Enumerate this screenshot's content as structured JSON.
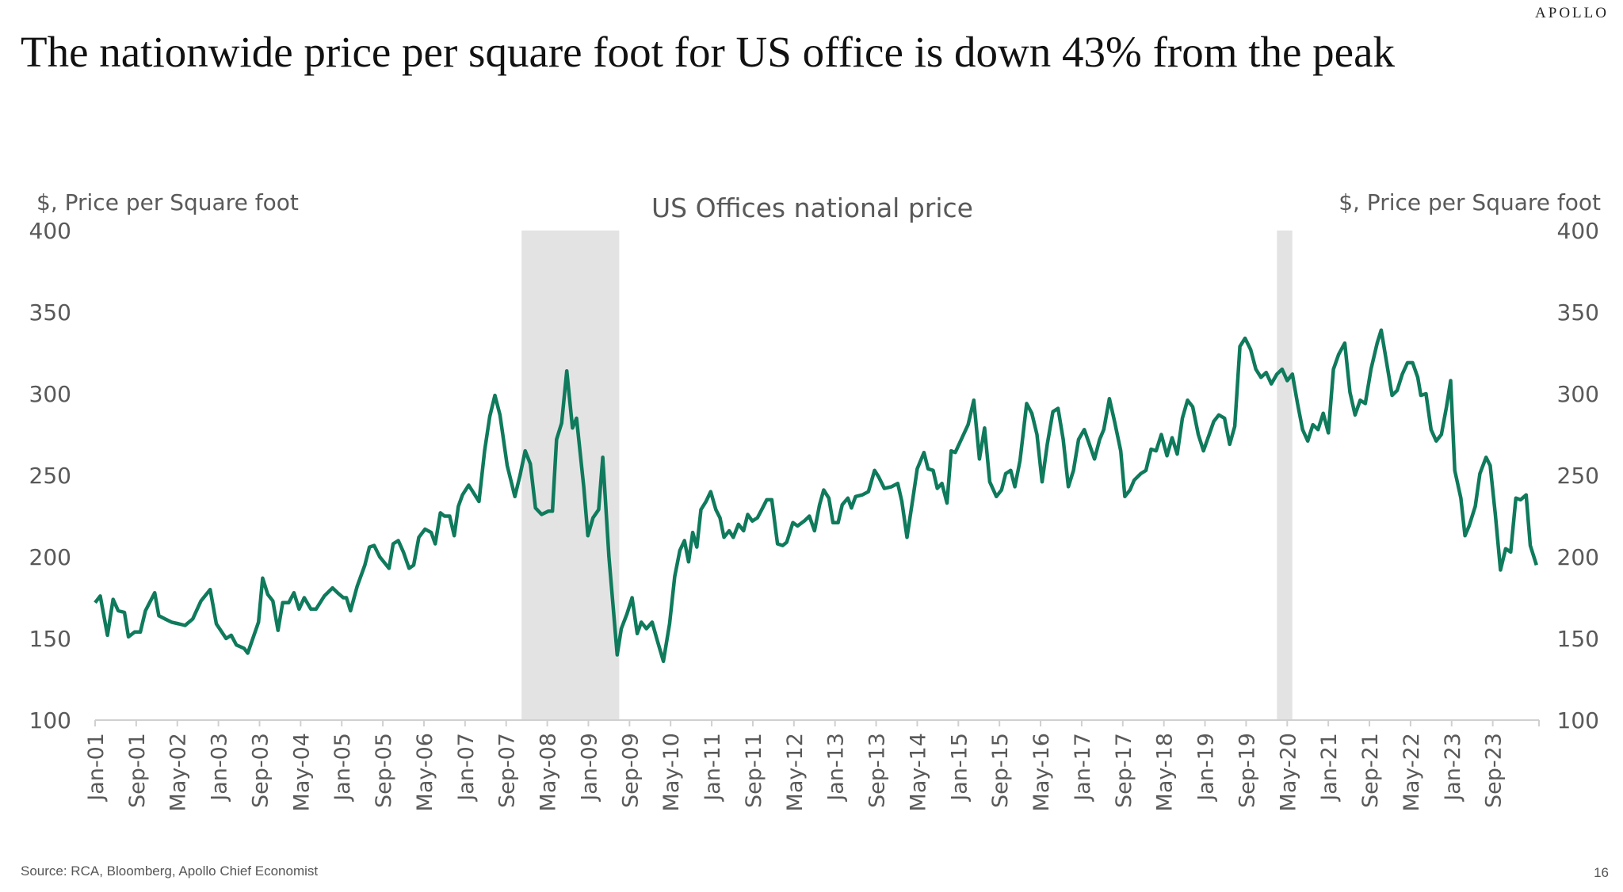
{
  "brand": "APOLLO",
  "title": "The nationwide price per square foot for US office is down 43% from the peak",
  "source": "Source: RCA, Bloomberg, Apollo Chief Economist",
  "page_number": "16",
  "colors": {
    "line": "#0f7a5c",
    "recession": "#e3e3e3",
    "text": "#595959"
  },
  "chart_data": {
    "type": "line",
    "title": "US Offices national price",
    "ylabel_left": "$, Price per Square foot",
    "ylabel_right": "$, Price per Square foot",
    "ylim": [
      100,
      400
    ],
    "yticks": [
      "100",
      "150",
      "200",
      "250",
      "300",
      "350",
      "400"
    ],
    "x_unit": "months since Jan-01",
    "xlim": [
      0,
      281
    ],
    "xtick_labels": [
      "Jan-01",
      "Sep-01",
      "May-02",
      "Jan-03",
      "Sep-03",
      "May-04",
      "Jan-05",
      "Sep-05",
      "May-06",
      "Jan-07",
      "Sep-07",
      "May-08",
      "Jan-09",
      "Sep-09",
      "May-10",
      "Jan-11",
      "Sep-11",
      "May-12",
      "Jan-13",
      "Sep-13",
      "May-14",
      "Jan-15",
      "Sep-15",
      "May-16",
      "Jan-17",
      "Sep-17",
      "May-18",
      "Jan-19",
      "Sep-19",
      "May-20",
      "Jan-21",
      "Sep-21",
      "May-22",
      "Jan-23",
      "Sep-23"
    ],
    "xtick_step_months": 8,
    "recession_shading": [
      [
        83,
        102
      ],
      [
        230,
        233
      ]
    ],
    "grid": false,
    "series": [
      {
        "name": "US Offices national price",
        "points": [
          [
            0,
            172
          ],
          [
            1,
            176
          ],
          [
            2.4,
            152
          ],
          [
            3.5,
            174
          ],
          [
            4.5,
            167
          ],
          [
            5.7,
            166
          ],
          [
            6.5,
            151
          ],
          [
            7.7,
            154
          ],
          [
            8.8,
            154
          ],
          [
            9.8,
            167
          ],
          [
            11.6,
            178
          ],
          [
            12.4,
            164
          ],
          [
            13.6,
            162
          ],
          [
            14.9,
            160
          ],
          [
            16.3,
            159
          ],
          [
            17.5,
            158
          ],
          [
            19,
            162
          ],
          [
            20.6,
            173
          ],
          [
            22.4,
            180
          ],
          [
            23.6,
            159
          ],
          [
            25.5,
            150
          ],
          [
            26.5,
            152
          ],
          [
            27.5,
            146
          ],
          [
            29,
            144
          ],
          [
            29.7,
            141
          ],
          [
            31.8,
            160
          ],
          [
            32.6,
            187
          ],
          [
            33.6,
            177
          ],
          [
            34.6,
            173
          ],
          [
            35.6,
            155
          ],
          [
            36.5,
            172
          ],
          [
            37.7,
            172
          ],
          [
            38.7,
            178
          ],
          [
            39.7,
            168
          ],
          [
            40.7,
            175
          ],
          [
            42,
            168
          ],
          [
            43,
            168
          ],
          [
            44.6,
            176
          ],
          [
            46.2,
            181
          ],
          [
            47.2,
            178
          ],
          [
            48.3,
            175
          ],
          [
            48.9,
            175
          ],
          [
            49.7,
            167
          ],
          [
            51,
            182
          ],
          [
            52.5,
            195
          ],
          [
            53.4,
            206
          ],
          [
            54.3,
            207
          ],
          [
            55.4,
            200
          ],
          [
            57.2,
            193
          ],
          [
            58,
            208
          ],
          [
            59,
            210
          ],
          [
            60,
            203
          ],
          [
            61.1,
            193
          ],
          [
            62,
            195
          ],
          [
            63,
            212
          ],
          [
            64.2,
            217
          ],
          [
            65.4,
            215
          ],
          [
            66.2,
            208
          ],
          [
            67.2,
            227
          ],
          [
            68,
            225
          ],
          [
            69,
            225
          ],
          [
            69.9,
            213
          ],
          [
            70.7,
            231
          ],
          [
            71.5,
            238
          ],
          [
            72.7,
            244
          ],
          [
            73.5,
            240
          ],
          [
            74.7,
            234
          ],
          [
            75.8,
            265
          ],
          [
            76.8,
            286
          ],
          [
            77.8,
            299
          ],
          [
            78.8,
            287
          ],
          [
            80.2,
            256
          ],
          [
            81.7,
            237
          ],
          [
            82.7,
            250
          ],
          [
            83.7,
            265
          ],
          [
            84.7,
            257
          ],
          [
            85.7,
            230
          ],
          [
            86.9,
            226
          ],
          [
            88.2,
            228
          ],
          [
            89,
            228
          ],
          [
            89.8,
            272
          ],
          [
            90.8,
            282
          ],
          [
            91.8,
            314
          ],
          [
            92.9,
            279
          ],
          [
            93.7,
            285
          ],
          [
            95.1,
            243
          ],
          [
            95.9,
            213
          ],
          [
            96.9,
            224
          ],
          [
            98,
            229
          ],
          [
            98.8,
            261
          ],
          [
            100,
            200
          ],
          [
            101.6,
            140
          ],
          [
            102.4,
            156
          ],
          [
            103.5,
            165
          ],
          [
            104.5,
            175
          ],
          [
            105.5,
            153
          ],
          [
            106.3,
            160
          ],
          [
            107.3,
            156
          ],
          [
            108.4,
            160
          ],
          [
            109.4,
            149
          ],
          [
            110.6,
            136
          ],
          [
            111.8,
            159
          ],
          [
            112.8,
            188
          ],
          [
            113.8,
            204
          ],
          [
            114.7,
            210
          ],
          [
            115.5,
            197
          ],
          [
            116.3,
            215
          ],
          [
            117.1,
            206
          ],
          [
            117.9,
            229
          ],
          [
            118.9,
            234
          ],
          [
            119.8,
            240
          ],
          [
            120.8,
            229
          ],
          [
            121.6,
            224
          ],
          [
            122.4,
            212
          ],
          [
            123.4,
            216
          ],
          [
            124.2,
            212
          ],
          [
            125.2,
            220
          ],
          [
            126.2,
            216
          ],
          [
            127,
            226
          ],
          [
            127.9,
            222
          ],
          [
            128.9,
            224
          ],
          [
            129.9,
            230
          ],
          [
            130.7,
            235
          ],
          [
            131.7,
            235
          ],
          [
            132.8,
            208
          ],
          [
            133.8,
            207
          ],
          [
            134.6,
            209
          ],
          [
            135.8,
            221
          ],
          [
            136.7,
            219
          ],
          [
            138,
            222
          ],
          [
            139,
            225
          ],
          [
            140,
            216
          ],
          [
            141,
            232
          ],
          [
            141.8,
            241
          ],
          [
            142.8,
            236
          ],
          [
            143.6,
            221
          ],
          [
            144.6,
            221
          ],
          [
            145.4,
            232
          ],
          [
            146.5,
            236
          ],
          [
            147.2,
            230
          ],
          [
            148,
            237
          ],
          [
            149.3,
            238
          ],
          [
            150.5,
            240
          ],
          [
            151.7,
            253
          ],
          [
            152.5,
            249
          ],
          [
            153.6,
            242
          ],
          [
            155,
            243
          ],
          [
            156.2,
            245
          ],
          [
            157,
            234
          ],
          [
            158,
            212
          ],
          [
            159.2,
            237
          ],
          [
            160,
            254
          ],
          [
            161.3,
            264
          ],
          [
            162.1,
            254
          ],
          [
            163.1,
            253
          ],
          [
            163.9,
            242
          ],
          [
            164.8,
            245
          ],
          [
            165.8,
            233
          ],
          [
            166.6,
            265
          ],
          [
            167.4,
            264
          ],
          [
            169.9,
            281
          ],
          [
            171,
            296
          ],
          [
            172.1,
            260
          ],
          [
            173.1,
            279
          ],
          [
            174.1,
            246
          ],
          [
            175.4,
            237
          ],
          [
            176.4,
            241
          ],
          [
            177.2,
            251
          ],
          [
            178.2,
            253
          ],
          [
            179,
            243
          ],
          [
            180,
            259
          ],
          [
            181.3,
            294
          ],
          [
            182.3,
            288
          ],
          [
            183.3,
            275
          ],
          [
            184.3,
            246
          ],
          [
            185.3,
            269
          ],
          [
            186.4,
            289
          ],
          [
            187.4,
            291
          ],
          [
            188.4,
            272
          ],
          [
            189.4,
            243
          ],
          [
            190.4,
            253
          ],
          [
            191.4,
            272
          ],
          [
            192.5,
            278
          ],
          [
            193.5,
            269
          ],
          [
            194.5,
            260
          ],
          [
            195.5,
            272
          ],
          [
            196.3,
            278
          ],
          [
            197.4,
            297
          ],
          [
            198.4,
            283
          ],
          [
            199.6,
            265
          ],
          [
            200.4,
            237
          ],
          [
            201.4,
            241
          ],
          [
            202.2,
            247
          ],
          [
            203.5,
            251
          ],
          [
            204.5,
            253
          ],
          [
            205.5,
            266
          ],
          [
            206.5,
            265
          ],
          [
            207.5,
            275
          ],
          [
            208.6,
            262
          ],
          [
            209.6,
            273
          ],
          [
            210.6,
            263
          ],
          [
            211.6,
            285
          ],
          [
            212.6,
            296
          ],
          [
            213.6,
            292
          ],
          [
            214.7,
            275
          ],
          [
            215.7,
            265
          ],
          [
            216.7,
            274
          ],
          [
            217.7,
            283
          ],
          [
            218.7,
            287
          ],
          [
            219.8,
            285
          ],
          [
            220.8,
            269
          ],
          [
            221.8,
            280
          ],
          [
            222.8,
            329
          ],
          [
            223.8,
            334
          ],
          [
            224.9,
            327
          ],
          [
            225.9,
            315
          ],
          [
            226.9,
            310
          ],
          [
            227.9,
            313
          ],
          [
            228.9,
            306
          ],
          [
            230,
            312
          ],
          [
            231,
            315
          ],
          [
            232,
            308
          ],
          [
            233,
            312
          ],
          [
            234,
            294
          ],
          [
            235,
            278
          ],
          [
            236,
            271
          ],
          [
            237,
            281
          ],
          [
            238,
            278
          ],
          [
            239,
            288
          ],
          [
            240,
            276
          ],
          [
            241,
            315
          ],
          [
            242,
            324
          ],
          [
            243.2,
            331
          ],
          [
            244.2,
            301
          ],
          [
            245.2,
            287
          ],
          [
            246.2,
            296
          ],
          [
            247.2,
            294
          ],
          [
            248.3,
            315
          ],
          [
            249.5,
            331
          ],
          [
            250.3,
            339
          ],
          [
            251.3,
            320
          ],
          [
            252.4,
            299
          ],
          [
            253.4,
            302
          ],
          [
            254.4,
            312
          ],
          [
            255.4,
            319
          ],
          [
            256.4,
            319
          ],
          [
            257.4,
            310
          ],
          [
            258,
            299
          ],
          [
            259,
            300
          ],
          [
            260,
            278
          ],
          [
            261,
            271
          ],
          [
            262,
            275
          ],
          [
            263,
            292
          ],
          [
            263.8,
            308
          ],
          [
            264.6,
            253
          ],
          [
            265.8,
            236
          ],
          [
            266.6,
            213
          ],
          [
            267.4,
            219
          ],
          [
            268.6,
            231
          ],
          [
            269.5,
            251
          ],
          [
            270.7,
            261
          ],
          [
            271.5,
            256
          ],
          [
            272.5,
            226
          ],
          [
            273.5,
            192
          ],
          [
            274.5,
            205
          ],
          [
            275.5,
            203
          ],
          [
            276.5,
            236
          ],
          [
            277.4,
            235
          ],
          [
            278.5,
            238
          ],
          [
            279.3,
            207
          ],
          [
            280.5,
            195
          ]
        ]
      }
    ]
  }
}
